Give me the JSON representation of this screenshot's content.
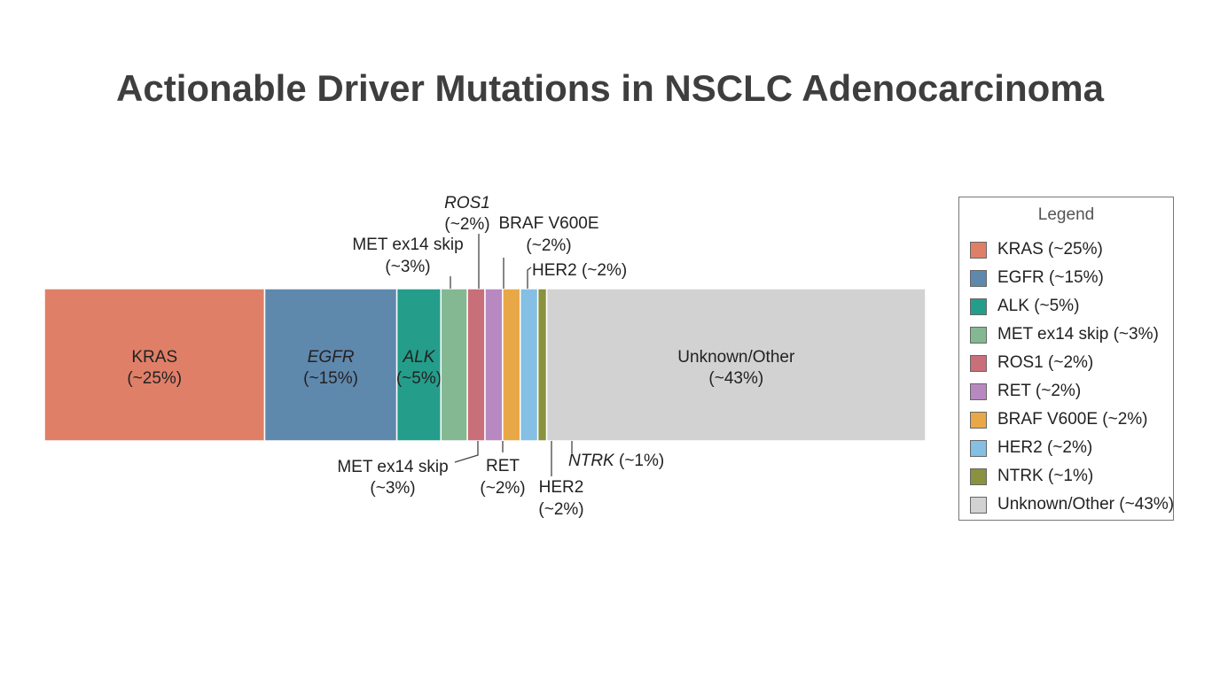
{
  "title": "Actionable Driver Mutations in NSCLC Adenocarcinoma",
  "chart_data": {
    "type": "bar",
    "orientation": "horizontal",
    "stacked": true,
    "unit": "%",
    "segments": [
      {
        "name": "KRAS",
        "value": 25,
        "value_label": "(~25%)",
        "color": "#e07f68",
        "italic": false,
        "label_placement": "inside"
      },
      {
        "name": "EGFR",
        "value": 15,
        "value_label": "(~15%)",
        "color": "#5f88ad",
        "italic": true,
        "label_placement": "inside"
      },
      {
        "name": "ALK",
        "value": 5,
        "value_label": "(~5%)",
        "color": "#249d8a",
        "italic": true,
        "label_placement": "inside"
      },
      {
        "name": "MET ex14 skip",
        "value": 3,
        "value_label": "(~3%)",
        "color": "#84b892",
        "italic": false,
        "label_placement": "above-and-below"
      },
      {
        "name": "ROS1",
        "value": 2,
        "value_label": "(~2%)",
        "color": "#c96f79",
        "italic": true,
        "label_placement": "above"
      },
      {
        "name": "RET",
        "value": 2,
        "value_label": "(~2%)",
        "color": "#b889c0",
        "italic": false,
        "label_placement": "below"
      },
      {
        "name": "BRAF V600E",
        "value": 2,
        "value_label": "(~2%)",
        "color": "#e9a848",
        "italic": false,
        "label_placement": "above"
      },
      {
        "name": "HER2",
        "value": 2,
        "value_label": "(~2%)",
        "color": "#85bfe4",
        "italic": false,
        "label_placement": "above-and-below"
      },
      {
        "name": "NTRK",
        "value": 1,
        "value_label": "(~1%)",
        "color": "#8a913f",
        "italic": true,
        "label_placement": "below"
      },
      {
        "name": "Unknown/Other",
        "value": 43,
        "value_label": "(~43%)",
        "color": "#d2d2d2",
        "italic": false,
        "label_placement": "inside"
      }
    ],
    "callouts": {
      "above": [
        {
          "text": "MET ex14 skip",
          "text2": "(~3%)"
        },
        {
          "text": "ROS1",
          "text2": "(~2%)"
        },
        {
          "text": "BRAF V600E",
          "text2": "(~2%)"
        },
        {
          "text": "HER2 (~2%)",
          "text2": ""
        }
      ],
      "below": [
        {
          "text": "MET ex14 skip",
          "text2": "(~3%)"
        },
        {
          "text": "RET",
          "text2": "(~2%)"
        },
        {
          "text": "HER2",
          "text2": "(~2%)"
        },
        {
          "text": "NTRK",
          "text2": "(~1%)"
        }
      ]
    },
    "legend": {
      "title": "Legend",
      "placement": "right",
      "items": [
        {
          "label": "KRAS (~25%)",
          "color": "#e07f68"
        },
        {
          "label": "EGFR (~15%)",
          "color": "#5f88ad"
        },
        {
          "label": "ALK (~5%)",
          "color": "#249d8a"
        },
        {
          "label": "MET ex14 skip (~3%)",
          "color": "#84b892"
        },
        {
          "label": "ROS1 (~2%)",
          "color": "#c96f79"
        },
        {
          "label": "RET (~2%)",
          "color": "#b889c0"
        },
        {
          "label": "BRAF V600E (~2%)",
          "color": "#e9a848"
        },
        {
          "label": "HER2 (~2%)",
          "color": "#85bfe4"
        },
        {
          "label": "NTRK (~1%)",
          "color": "#8a913f"
        },
        {
          "label": "Unknown/Other (~43%)",
          "color": "#d2d2d2"
        }
      ]
    }
  }
}
